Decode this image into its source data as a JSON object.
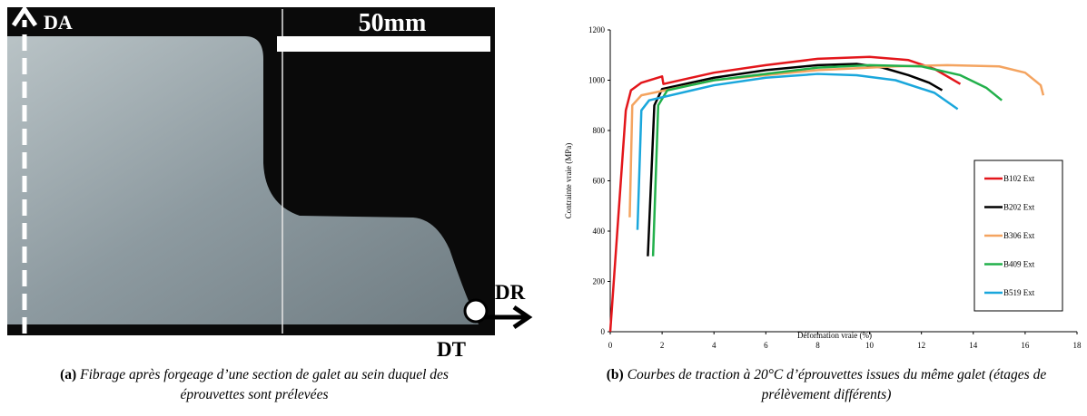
{
  "figure_a": {
    "labels": {
      "da": "DA",
      "scale": "50mm",
      "dr": "DR",
      "dt": "DT"
    },
    "caption": {
      "label": "(a)",
      "text": "Fibrage après forgeage d’une section de galet au sein duquel des éprouvettes sont prélevées"
    }
  },
  "chart_data": {
    "type": "line",
    "xlabel": "Déformation vraie (%)",
    "ylabel": "Contrainte vraie (MPa)",
    "xlim": [
      0,
      18
    ],
    "ylim": [
      0,
      1200
    ],
    "xticks": [
      0,
      2,
      4,
      6,
      8,
      10,
      12,
      14,
      16,
      18
    ],
    "yticks": [
      0,
      200,
      400,
      600,
      800,
      1000,
      1200
    ],
    "legend": "right",
    "series": [
      {
        "name": "B102 Ext",
        "color": "#e3161b",
        "x": [
          0,
          0.6,
          0.8,
          1.2,
          2.0,
          2.05,
          4,
          6,
          8,
          10,
          11.5,
          12.5,
          13.5
        ],
        "values": [
          0,
          880,
          960,
          990,
          1015,
          985,
          1030,
          1060,
          1085,
          1093,
          1080,
          1045,
          985
        ]
      },
      {
        "name": "B202 Ext",
        "color": "#000000",
        "x": [
          1.45,
          1.7,
          2,
          4,
          6,
          8,
          9.5,
          10.5,
          11.5,
          12.3,
          12.8
        ],
        "values": [
          300,
          900,
          965,
          1010,
          1040,
          1060,
          1065,
          1050,
          1020,
          990,
          960
        ]
      },
      {
        "name": "B306 Ext",
        "color": "#f4a460",
        "x": [
          0.75,
          0.85,
          1.2,
          4,
          8,
          11,
          13,
          15,
          16,
          16.6,
          16.7
        ],
        "values": [
          455,
          900,
          940,
          1000,
          1040,
          1055,
          1060,
          1055,
          1030,
          980,
          940
        ]
      },
      {
        "name": "B409 Ext",
        "color": "#22b04b",
        "x": [
          1.65,
          1.85,
          2.2,
          4,
          8,
          10,
          12,
          13.5,
          14.5,
          15.1
        ],
        "values": [
          300,
          900,
          960,
          1000,
          1050,
          1060,
          1055,
          1020,
          970,
          920
        ]
      },
      {
        "name": "B519 Ext",
        "color": "#1aa7dc",
        "x": [
          1.05,
          1.2,
          1.5,
          4,
          6,
          8,
          9.5,
          11,
          12.5,
          13.4
        ],
        "values": [
          405,
          880,
          920,
          980,
          1010,
          1025,
          1020,
          1000,
          950,
          885
        ]
      }
    ]
  },
  "figure_b": {
    "caption": {
      "label": "(b)",
      "text": "Courbes de traction à 20°C d’éprouvettes issues du même galet (étages de prélèvement différents)"
    }
  }
}
